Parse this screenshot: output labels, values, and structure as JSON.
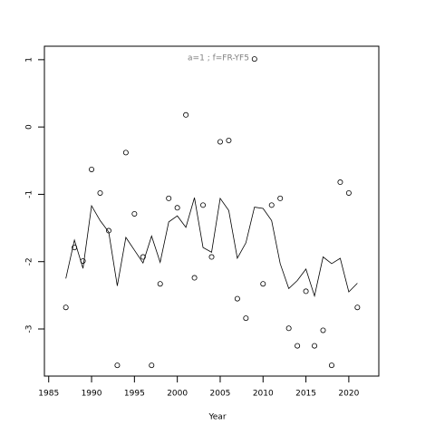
{
  "chart_data": {
    "type": "scatter",
    "title": "a=1 ; f=FR-YF5",
    "x_label": "Year",
    "x": [
      1987,
      1988,
      1989,
      1990,
      1991,
      1992,
      1993,
      1994,
      1995,
      1996,
      1997,
      1998,
      1999,
      2000,
      2001,
      2002,
      2003,
      2004,
      2005,
      2006,
      2007,
      2008,
      2009,
      2010,
      2011,
      2012,
      2013,
      2014,
      2015,
      2016,
      2017,
      2018,
      2019,
      2020,
      2021
    ],
    "series": [
      {
        "type": "scatter",
        "color": "#000000",
        "values": [
          -2.68,
          -1.79,
          -1.99,
          -0.63,
          -0.98,
          -1.54,
          -3.54,
          -0.38,
          -1.29,
          -1.93,
          -3.54,
          -2.33,
          -1.06,
          -1.2,
          0.18,
          -2.24,
          -1.16,
          -1.93,
          -0.22,
          -0.2,
          -2.55,
          -2.84,
          1.01,
          -2.33,
          -1.16,
          -1.06,
          -2.99,
          -3.25,
          -2.44,
          -3.25,
          -3.02,
          -3.54,
          -0.82,
          -0.98,
          -2.68
        ]
      },
      {
        "type": "line",
        "color": "#000000",
        "values": [
          -2.25,
          -1.68,
          -2.1,
          -1.17,
          -1.39,
          -1.56,
          -2.36,
          -1.64,
          -1.83,
          -2.02,
          -1.62,
          -2.01,
          -1.41,
          -1.32,
          -1.49,
          -1.05,
          -1.79,
          -1.86,
          -1.06,
          -1.24,
          -1.95,
          -1.72,
          -1.19,
          -1.21,
          -1.39,
          -2.03,
          -2.4,
          -2.28,
          -2.11,
          -2.51,
          -1.93,
          -2.03,
          -1.95,
          -2.45,
          -2.32
        ]
      }
    ],
    "xlim": [
      1984.5,
      2023.5
    ],
    "xticks": [
      1985,
      1990,
      1995,
      2000,
      2005,
      2010,
      2015,
      2020
    ],
    "ylim": [
      -3.7,
      1.2
    ],
    "yticks": [
      -3,
      -2,
      -1,
      0,
      1
    ],
    "title_color": "#808080"
  }
}
